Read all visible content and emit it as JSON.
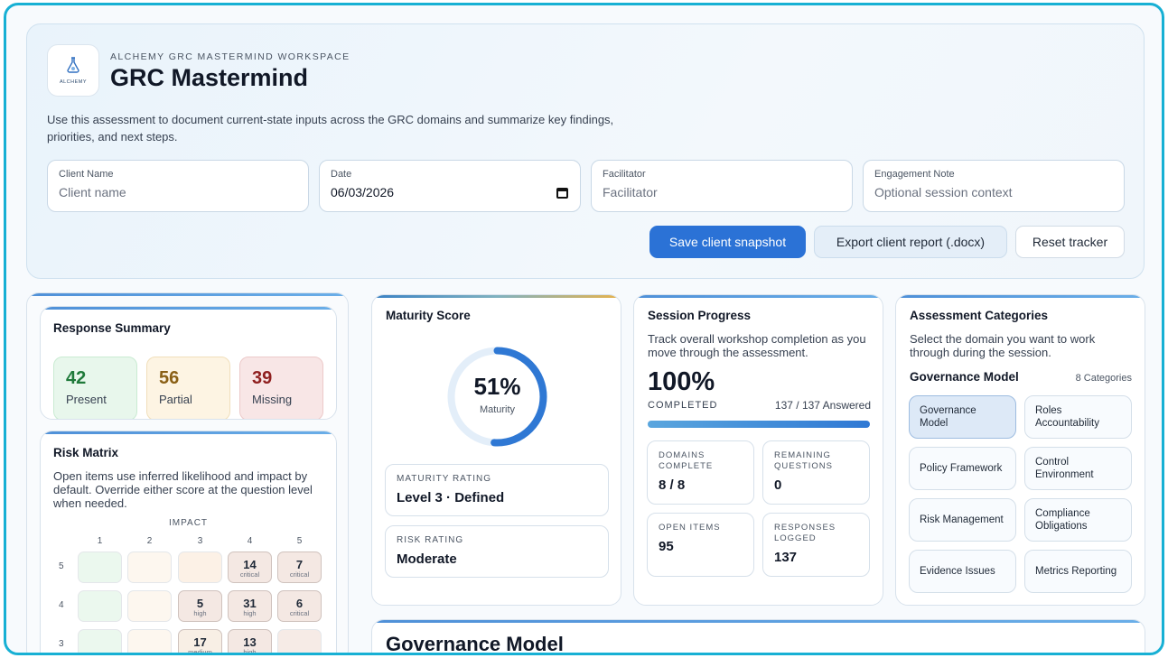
{
  "header": {
    "logo_text": "ALCHEMY",
    "eyebrow": "ALCHEMY GRC MASTERMIND WORKSPACE",
    "title": "GRC Mastermind",
    "description": "Use this assessment to document current-state inputs across the GRC domains and summarize key findings, priorities, and next steps."
  },
  "fields": {
    "client_name": {
      "label": "Client Name",
      "placeholder": "Client name"
    },
    "date": {
      "label": "Date",
      "value": "06/03/2026"
    },
    "facilitator": {
      "label": "Facilitator",
      "placeholder": "Facilitator"
    },
    "engagement_note": {
      "label": "Engagement Note",
      "placeholder": "Optional session context"
    }
  },
  "actions": {
    "save": "Save client snapshot",
    "export": "Export client report (.docx)",
    "reset": "Reset tracker"
  },
  "response_summary": {
    "title": "Response Summary",
    "present": {
      "value": "42",
      "label": "Present"
    },
    "partial": {
      "value": "56",
      "label": "Partial"
    },
    "missing": {
      "value": "39",
      "label": "Missing"
    }
  },
  "risk_matrix": {
    "title": "Risk Matrix",
    "description": "Open items use inferred likelihood and impact by default. Override either score at the question level when needed.",
    "axis_label": "IMPACT",
    "impact_cols": [
      "1",
      "2",
      "3",
      "4",
      "5"
    ],
    "rows": [
      {
        "likelihood": "5",
        "cells": [
          {
            "n": "",
            "s": ""
          },
          {
            "n": "",
            "s": ""
          },
          {
            "n": "",
            "s": ""
          },
          {
            "n": "14",
            "s": "critical"
          },
          {
            "n": "7",
            "s": "critical"
          }
        ]
      },
      {
        "likelihood": "4",
        "cells": [
          {
            "n": "",
            "s": ""
          },
          {
            "n": "",
            "s": ""
          },
          {
            "n": "5",
            "s": "high"
          },
          {
            "n": "31",
            "s": "high"
          },
          {
            "n": "6",
            "s": "critical"
          }
        ]
      },
      {
        "likelihood": "3",
        "cells": [
          {
            "n": "",
            "s": ""
          },
          {
            "n": "",
            "s": ""
          },
          {
            "n": "17",
            "s": "medium"
          },
          {
            "n": "13",
            "s": "high"
          },
          {
            "n": "",
            "s": ""
          }
        ]
      }
    ]
  },
  "maturity": {
    "title": "Maturity Score",
    "percent": "51%",
    "percent_value": 51,
    "caption": "Maturity",
    "rating_label": "MATURITY RATING",
    "rating_value": "Level 3 · Defined",
    "risk_label": "RISK RATING",
    "risk_value": "Moderate"
  },
  "session": {
    "title": "Session Progress",
    "description": "Track overall workshop completion as you move through the assessment.",
    "percent": "100%",
    "progress_value": 100,
    "completed_label": "COMPLETED",
    "answered": "137 / 137 Answered",
    "domains_label": "DOMAINS COMPLETE",
    "domains_value": "8 / 8",
    "remaining_label": "REMAINING QUESTIONS",
    "remaining_value": "0",
    "open_label": "OPEN ITEMS",
    "open_value": "95",
    "responses_label": "RESPONSES LOGGED",
    "responses_value": "137"
  },
  "categories": {
    "title": "Assessment Categories",
    "description": "Select the domain you want to work through during the session.",
    "current": "Governance Model",
    "count": "8 Categories",
    "items": [
      {
        "label": "Governance Model",
        "active": true
      },
      {
        "label": "Roles Accountability",
        "active": false
      },
      {
        "label": "Policy Framework",
        "active": false
      },
      {
        "label": "Control Environment",
        "active": false
      },
      {
        "label": "Risk Management",
        "active": false
      },
      {
        "label": "Compliance Obligations",
        "active": false
      },
      {
        "label": "Evidence Issues",
        "active": false
      },
      {
        "label": "Metrics Reporting",
        "active": false
      }
    ]
  },
  "section": {
    "title": "Governance Model"
  },
  "colors": {
    "accent": "#2b72d6",
    "frame": "#17b0d4",
    "present_bg": "#e8f7ec",
    "partial_bg": "#fdf4e3",
    "missing_bg": "#f8e6e6"
  }
}
